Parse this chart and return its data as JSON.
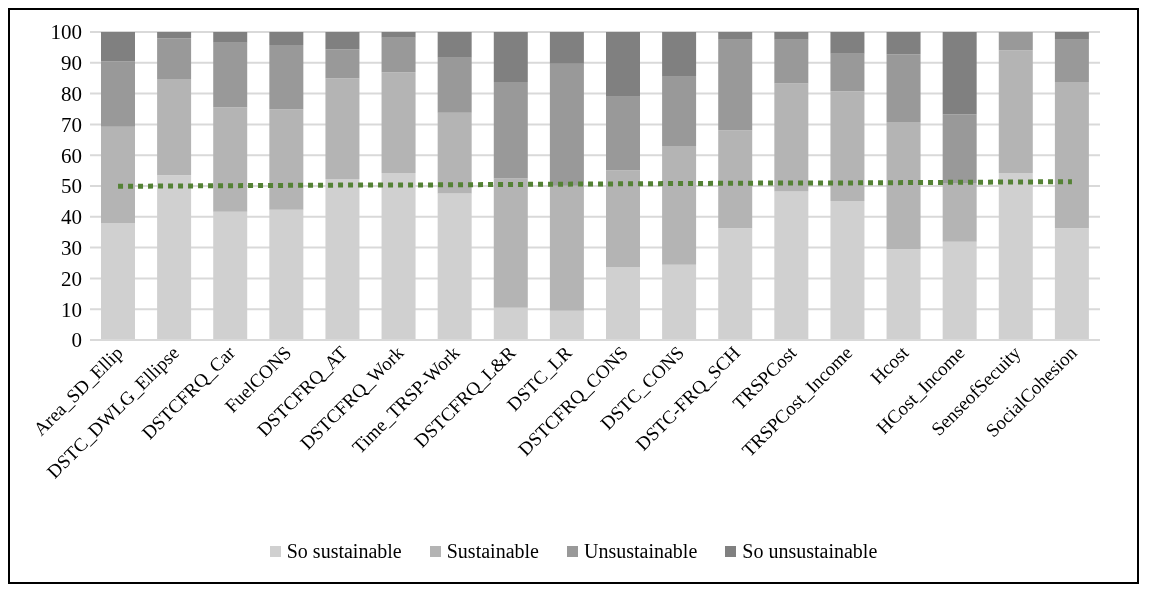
{
  "chart_data": {
    "type": "bar",
    "stacked": true,
    "categories": [
      "Area_SD_Ellip",
      "DSTC_DWLG_Ellipse",
      "DSTCFRQ_Car",
      "FuelCONS",
      "DSTCFRQ_AT",
      "DSTCFRQ_Work",
      "Time_TRSP-Work",
      "DSTCFRQ_L&R",
      "DSTC_LR",
      "DSTCFRQ_CONS",
      "DSTC_CONS",
      "DSTC-FRQ_SCH",
      "TRSPCost",
      "TRSPCost_Income",
      "Hcost",
      "HCost_Income",
      "SenseofSecuity",
      "SocialCohesion"
    ],
    "series": [
      {
        "name": "So sustainable",
        "color": "#d0d0d0",
        "values": [
          38,
          53.5,
          41.6,
          42.3,
          52.3,
          54.2,
          47.6,
          10.5,
          9.5,
          23.7,
          24.4,
          36.3,
          48.2,
          45.1,
          29.5,
          31.9,
          54.2,
          36.3
        ]
      },
      {
        "name": "Sustainable",
        "color": "#b4b4b4",
        "values": [
          31.2,
          31.2,
          34,
          32.6,
          32.7,
          32.7,
          26.2,
          41.9,
          40.6,
          31.4,
          38.6,
          31.8,
          35.1,
          35.7,
          41.3,
          19.1,
          39.9,
          47.5
        ]
      },
      {
        "name": "Unsustainable",
        "color": "#999999",
        "values": [
          21.3,
          13.3,
          20.9,
          20.9,
          9.4,
          11.2,
          17.8,
          31.4,
          39.6,
          23.9,
          22.5,
          29.4,
          14.2,
          12.1,
          22,
          22.2,
          5.9,
          13.7
        ]
      },
      {
        "name": "So unsustainable",
        "color": "#808080",
        "values": [
          9.5,
          2,
          3.5,
          4.2,
          5.6,
          1.9,
          8.4,
          16.2,
          10.3,
          21,
          14.5,
          2.5,
          2.5,
          7.1,
          7.2,
          26.8,
          0,
          2.5
        ]
      },
      {
        "type": "line",
        "color": "#548235",
        "line_style": "dotted",
        "values": [
          49.9,
          50.0,
          50.1,
          50.2,
          50.3,
          50.3,
          50.4,
          50.5,
          50.6,
          50.7,
          50.8,
          50.9,
          51.0,
          51.0,
          51.1,
          51.2,
          51.3,
          51.4
        ]
      }
    ],
    "ylim": [
      0,
      100
    ],
    "yticks": [
      0,
      10,
      20,
      30,
      40,
      50,
      60,
      70,
      80,
      90,
      100
    ],
    "grid": "y",
    "legend": "bottom"
  }
}
